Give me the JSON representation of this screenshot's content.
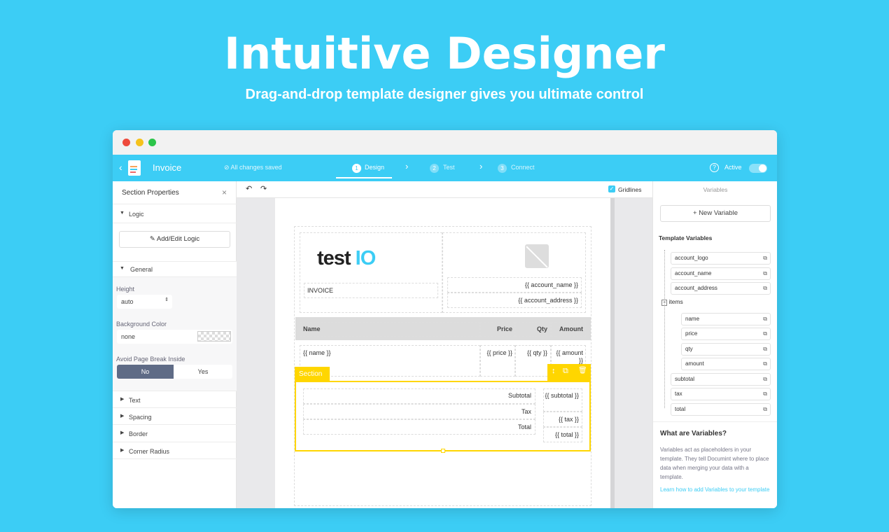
{
  "hero": {
    "title": "Intuitive Designer",
    "subtitle": "Drag-and-drop template designer gives you ultimate control"
  },
  "header": {
    "title": "Invoice",
    "save_status": "All changes saved",
    "steps": [
      {
        "num": "1",
        "label": "Design"
      },
      {
        "num": "2",
        "label": "Test"
      },
      {
        "num": "3",
        "label": "Connect"
      }
    ],
    "active_label": "Active",
    "active_on": true
  },
  "left_panel": {
    "title": "Section Properties",
    "logic_label": "Logic",
    "logic_button": "Add/Edit Logic",
    "general_label": "General",
    "height_label": "Height",
    "height_value": "auto",
    "bg_label": "Background Color",
    "bg_value": "none",
    "page_break_label": "Avoid Page Break Inside",
    "no": "No",
    "yes": "Yes",
    "collapsed": [
      "Text",
      "Spacing",
      "Border",
      "Corner Radius"
    ]
  },
  "toolbar": {
    "gridlines_label": "Gridlines",
    "gridlines_checked": true
  },
  "document": {
    "logo_text": "test",
    "logo_accent": "IO",
    "invoice_label": "INVOICE",
    "account_name": "{{ account_name }}",
    "account_address": "{{ account_address }}",
    "headers": [
      "Name",
      "Price",
      "Qty",
      "Amount"
    ],
    "row": [
      "{{ name }}",
      "{{ price }}",
      "{{ qty }}",
      "{{ amount }}"
    ],
    "section_label": "Section",
    "totals_labels": [
      "Subtotal",
      "Tax",
      "Total"
    ],
    "totals_values": [
      "{{ subtotal }}",
      "{{ tax }}",
      "{{ total }}"
    ]
  },
  "right_panel": {
    "title": "Variables",
    "new_variable": "New Variable",
    "template_variables": "Template Variables",
    "variables": [
      "account_logo",
      "account_name",
      "account_address"
    ],
    "group": "items",
    "group_children": [
      "name",
      "price",
      "qty",
      "amount"
    ],
    "variables_after": [
      "subtotal",
      "tax",
      "total"
    ],
    "help_title": "What are Variables?",
    "help_text": "Variables act as placeholders in your template. They tell Documint where to place data when merging your data with a template.",
    "help_link": "Learn how to add Variables to your template"
  },
  "colors": {
    "brand": "#3ccdf5",
    "section": "#ffd600",
    "toggle_selected": "#5f6b86"
  }
}
